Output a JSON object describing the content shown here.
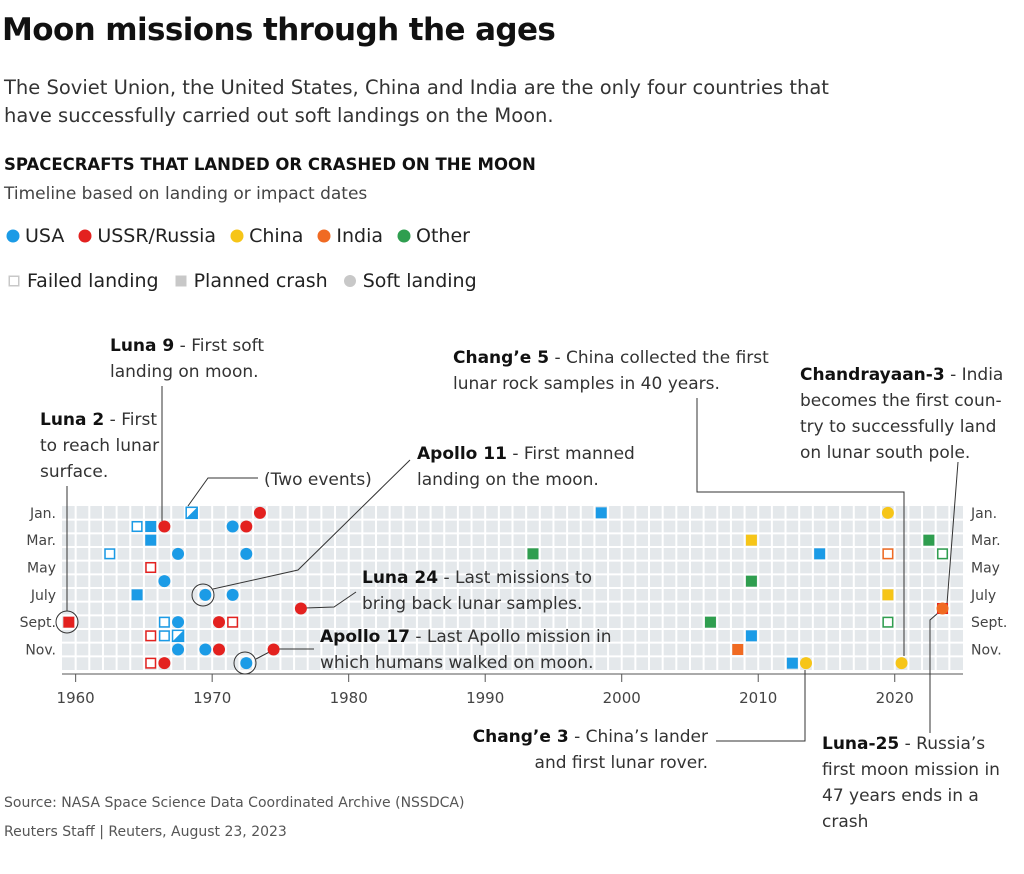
{
  "chart_data": {
    "type": "scatter",
    "title": "Moon missions through the ages",
    "subtitle": "The Soviet Union, the United States, China and India are the only four countries that have successfully carried out soft landings on the Moon.",
    "chart_title": "SPACECRAFTS THAT LANDED OR CRASHED ON THE MOON",
    "chart_subtitle": "Timeline based on landing or impact dates",
    "outcomes": [
      {
        "name": "Failed landing"
      },
      {
        "name": "Planned crash"
      },
      {
        "name": "Soft landing"
      }
    ],
    "series": [
      {
        "name": "USA",
        "color": "#1b9be6",
        "x": [
          1968,
          1964,
          1965,
          1971,
          1965,
          1962,
          1967,
          1972,
          2014,
          1998,
          1966,
          1964,
          1969,
          1971,
          1966,
          1967,
          1966,
          1967,
          2009,
          1967,
          1969,
          1972,
          2012
        ],
        "y": [
          1,
          2,
          2,
          2,
          3,
          4,
          4,
          4,
          4,
          1,
          6,
          7,
          7,
          7,
          9,
          9,
          10,
          10,
          10,
          11,
          11,
          12,
          12
        ],
        "outcome": [
          [
            1,
            0
          ],
          0,
          1,
          2,
          1,
          0,
          2,
          2,
          1,
          1,
          2,
          1,
          2,
          2,
          0,
          2,
          0,
          [
            1,
            0
          ],
          1,
          2,
          2,
          2,
          1
        ]
      },
      {
        "name": "USSR/Russia",
        "color": "#e3211f",
        "x": [
          1973,
          1966,
          1972,
          1965,
          1976,
          2023,
          1959,
          1970,
          1971,
          1965,
          1970,
          1974,
          1965,
          1966
        ],
        "y": [
          1,
          2,
          2,
          5,
          8,
          8,
          9,
          9,
          9,
          10,
          11,
          11,
          12,
          12
        ],
        "outcome": [
          2,
          2,
          2,
          0,
          2,
          0,
          1,
          2,
          0,
          0,
          2,
          2,
          0,
          2
        ]
      },
      {
        "name": "China",
        "color": "#f6c518",
        "x": [
          2019,
          2009,
          2019,
          2013,
          2020
        ],
        "y": [
          1,
          3,
          7,
          12,
          12
        ],
        "outcome": [
          2,
          1,
          1,
          2,
          2
        ]
      },
      {
        "name": "India",
        "color": "#f06a22",
        "x": [
          2019,
          2008,
          2023
        ],
        "y": [
          4,
          11,
          8
        ],
        "outcome": [
          0,
          1,
          2
        ]
      },
      {
        "name": "Other",
        "color": "#2f9e4f",
        "x": [
          2022,
          1993,
          2023,
          2009,
          2006,
          2019
        ],
        "y": [
          3,
          4,
          4,
          6,
          9,
          9
        ],
        "outcome": [
          1,
          1,
          0,
          1,
          1,
          0
        ]
      }
    ],
    "xlim": [
      1959,
      2025
    ],
    "xticks": [
      1960,
      1970,
      1980,
      1990,
      2000,
      2010,
      2020
    ],
    "ylim": [
      0.5,
      12.5
    ],
    "yticks": [
      {
        "value": 1,
        "label": "Jan."
      },
      {
        "value": 3,
        "label": "Mar."
      },
      {
        "value": 5,
        "label": "May"
      },
      {
        "value": 7,
        "label": "July"
      },
      {
        "value": 9,
        "label": "Sept."
      },
      {
        "value": 11,
        "label": "Nov."
      }
    ],
    "annotations": [
      {
        "title": "Luna 9",
        "text": "- First soft landing on moon."
      },
      {
        "title": "Luna 2",
        "text": "- First to reach lunar surface."
      },
      {
        "text": "(Two events)"
      },
      {
        "title": "Apollo 11",
        "text": "- First manned landing on the moon."
      },
      {
        "title": "Chang’e 5",
        "text": "- China collected the first lunar rock samples in 40 years."
      },
      {
        "title": "Chandrayaan-3",
        "text": "- India becomes the first coun­try to successfully land on lunar south pole."
      },
      {
        "title": "Luna 24",
        "text": "- Last missions to bring back lunar samples."
      },
      {
        "title": "Apollo 17",
        "text": "- Last Apollo mission in which humans walked on moon."
      },
      {
        "title": "Chang’e 3",
        "text": "- China’s lander and first lunar rover."
      },
      {
        "title": "Luna-25",
        "text": "- Russia’s first moon mission in 47 years ends in a crash"
      }
    ],
    "source": "Source: NASA Space Science Data Coordinated Archive (NSSDCA)",
    "credit": "Reuters Staff  |  Reuters, August 23, 2023"
  }
}
